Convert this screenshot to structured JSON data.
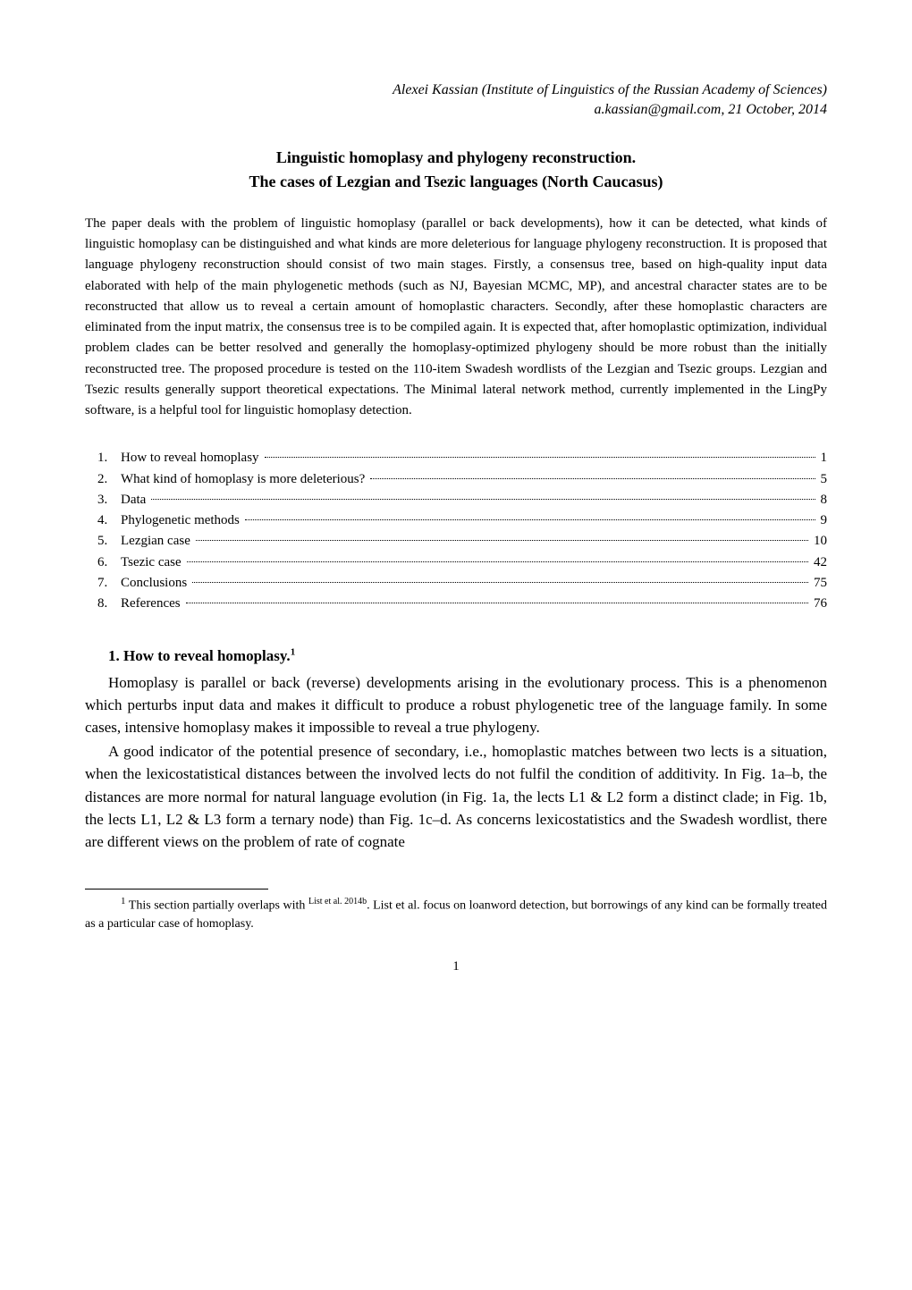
{
  "header": {
    "affiliation": "Alexei Kassian (Institute of Linguistics of the Russian Academy of Sciences)",
    "contact": "a.kassian@gmail.com, 21 October, 2014"
  },
  "title": {
    "line1": "Linguistic homoplasy and phylogeny reconstruction.",
    "line2": "The cases of Lezgian and Tsezic languages (North Caucasus)"
  },
  "abstract": {
    "text": "The paper deals with the problem of linguistic homoplasy (parallel or back developments), how it can be detected, what kinds of linguistic homoplasy can be distinguished and what kinds are more deleterious for language phylogeny reconstruction. It is proposed that language phylogeny reconstruction should consist of two main stages. Firstly, a consensus tree, based on high-quality input data elaborated with help of the main phylogenetic methods (such as NJ, Bayesian MCMC, MP), and ancestral character states are to be reconstructed that allow us to reveal a certain amount of homoplastic characters. Secondly, after these homoplastic characters are eliminated from the input matrix, the consensus tree is to be compiled again. It is expected that, after homoplastic optimization, individual problem clades can be better resolved and generally the homoplasy-optimized phylogeny should be more robust than the initially reconstructed tree. The proposed procedure is tested on the 110-item Swadesh wordlists of the Lezgian and Tsezic groups. Lezgian and Tsezic results generally support theoretical expectations. The Minimal lateral network method, currently implemented in the LingPy software, is a helpful tool for linguistic homoplasy detection."
  },
  "toc": {
    "items": [
      {
        "num": "1.",
        "label": "How to reveal homoplasy",
        "page": "1"
      },
      {
        "num": "2.",
        "label": "What kind of homoplasy is more deleterious?",
        "page": "5"
      },
      {
        "num": "3.",
        "label": "Data",
        "page": "8"
      },
      {
        "num": "4.",
        "label": "Phylogenetic methods",
        "page": "9"
      },
      {
        "num": "5.",
        "label": "Lezgian case",
        "page": "10"
      },
      {
        "num": "6.",
        "label": "Tsezic case",
        "page": "42"
      },
      {
        "num": "7.",
        "label": "Conclusions",
        "page": "75"
      },
      {
        "num": "8.",
        "label": "References",
        "page": "76"
      }
    ]
  },
  "section1": {
    "heading_prefix": "1. How to reveal homoplasy.",
    "heading_sup": "1",
    "para1": "Homoplasy is parallel or back (reverse) developments arising in the evolutionary process. This is a phenomenon which perturbs input data and makes it difficult to produce a robust phylogenetic tree of the language family. In some cases, intensive homoplasy makes it impossible to reveal a true phylogeny.",
    "para2": "A good indicator of the potential presence of secondary, i.e., homoplastic matches between two lects is a situation, when the lexicostatistical distances between the involved lects do not fulfil the condition of additivity. In Fig. 1a–b, the distances are more normal for natural language evolution (in Fig. 1a, the lects L1 & L2 form a distinct clade; in Fig. 1b, the lects L1, L2 & L3 form a ternary node) than Fig. 1c–d. As concerns lexicostatistics and the Swadesh wordlist, there are different views on the problem of rate of cognate"
  },
  "footnote": {
    "marker": "1",
    "pre_cite": " This section partially overlaps with ",
    "cite": "List et al. 2014b",
    "post_cite": ". List et al. focus on loanword detection, but borrowings of any kind can be formally treated as a particular case of homoplasy."
  },
  "pagenum": "1",
  "colors": {
    "text": "#000000",
    "background": "#ffffff",
    "rule": "#000000"
  },
  "typography": {
    "body_fontsize_pt": 12,
    "abstract_fontsize_pt": 11,
    "heading_fontsize_pt": 12,
    "footnote_fontsize_pt": 10,
    "font_family": "Palatino-like serif"
  }
}
